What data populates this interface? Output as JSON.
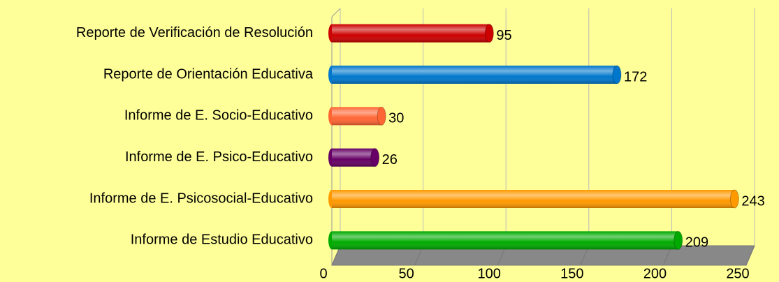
{
  "chart_data": {
    "type": "bar",
    "orientation": "horizontal",
    "categories": [
      "Reporte de Verificación de Resolución",
      "Reporte de Orientación Educativa",
      "Informe de E. Socio-Educativo",
      "Informe de E. Psico-Educativo",
      "Informe de E. Psicosocial-Educativo",
      "Informe de Estudio Educativo"
    ],
    "values": [
      95,
      172,
      30,
      26,
      243,
      209
    ],
    "colors": [
      "#cc0000",
      "#0077cc",
      "#ff6633",
      "#660066",
      "#ff9900",
      "#00aa00"
    ],
    "xlim": [
      0,
      250
    ],
    "xticks": [
      0,
      50,
      100,
      150,
      200,
      250
    ],
    "grid": true
  }
}
